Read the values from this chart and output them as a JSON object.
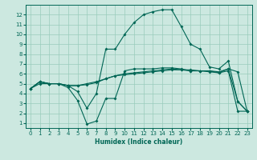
{
  "xlabel": "Humidex (Indice chaleur)",
  "background_color": "#cce8e0",
  "grid_color": "#99ccbb",
  "line_color": "#006655",
  "x_ticks": [
    0,
    1,
    2,
    3,
    4,
    5,
    6,
    7,
    8,
    9,
    10,
    11,
    12,
    13,
    14,
    15,
    16,
    17,
    18,
    19,
    20,
    21,
    22,
    23
  ],
  "y_ticks": [
    1,
    2,
    3,
    4,
    5,
    6,
    7,
    8,
    9,
    10,
    11,
    12
  ],
  "xlim": [
    -0.5,
    23.5
  ],
  "ylim": [
    0.5,
    13.0
  ],
  "series": [
    {
      "x": [
        0,
        1,
        2,
        3,
        4,
        5,
        6,
        7,
        8,
        9,
        10,
        11,
        12,
        13,
        14,
        15,
        16,
        17,
        18,
        19,
        20,
        21,
        22,
        23
      ],
      "y": [
        4.5,
        5.2,
        5.0,
        5.0,
        4.8,
        4.8,
        5.0,
        5.2,
        5.5,
        5.8,
        6.0,
        6.1,
        6.2,
        6.3,
        6.4,
        6.5,
        6.4,
        6.4,
        6.3,
        6.3,
        6.2,
        6.5,
        6.2,
        2.2
      ]
    },
    {
      "x": [
        0,
        1,
        2,
        3,
        4,
        5,
        6,
        7,
        8,
        9,
        10,
        11,
        12,
        13,
        14,
        15,
        16,
        17,
        18,
        19,
        20,
        21,
        22,
        23
      ],
      "y": [
        4.5,
        5.0,
        5.0,
        5.0,
        4.8,
        4.8,
        4.9,
        5.1,
        5.5,
        5.8,
        5.9,
        6.0,
        6.1,
        6.2,
        6.3,
        6.4,
        6.4,
        6.3,
        6.3,
        6.2,
        6.1,
        6.3,
        2.2,
        2.2
      ]
    },
    {
      "x": [
        0,
        1,
        2,
        3,
        4,
        5,
        6,
        7,
        8,
        9,
        10,
        11,
        12,
        13,
        14,
        15,
        16,
        17,
        18,
        19,
        20,
        21,
        22,
        23
      ],
      "y": [
        4.5,
        5.2,
        5.0,
        5.0,
        4.6,
        3.3,
        0.9,
        1.2,
        3.5,
        3.5,
        6.3,
        6.5,
        6.5,
        6.5,
        6.6,
        6.6,
        6.5,
        6.3,
        6.3,
        6.3,
        6.1,
        6.5,
        3.2,
        2.2
      ]
    },
    {
      "x": [
        0,
        1,
        2,
        3,
        4,
        5,
        6,
        7,
        8,
        9,
        10,
        11,
        12,
        13,
        14,
        15,
        16,
        17,
        18,
        19,
        20,
        21,
        22,
        23
      ],
      "y": [
        4.5,
        5.2,
        5.0,
        5.0,
        4.8,
        4.2,
        2.5,
        4.0,
        8.5,
        8.5,
        10.0,
        11.2,
        12.0,
        12.3,
        12.5,
        12.5,
        10.8,
        9.0,
        8.5,
        6.7,
        6.5,
        7.3,
        3.2,
        2.2
      ]
    }
  ]
}
